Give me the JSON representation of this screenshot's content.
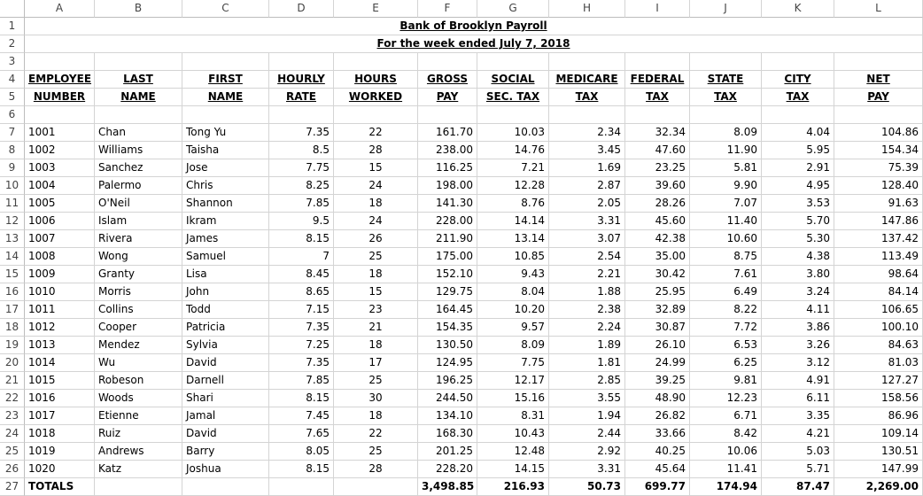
{
  "columns": [
    "A",
    "B",
    "C",
    "D",
    "E",
    "F",
    "G",
    "H",
    "I",
    "J",
    "K",
    "L"
  ],
  "title": "Bank of Brooklyn Payroll",
  "subtitle": "For the week  ended July  7, 2018",
  "headers_top": [
    "EMPLOYEE",
    "LAST",
    "FIRST",
    "HOURLY",
    "HOURS",
    "GROSS",
    "SOCIAL",
    "MEDICARE",
    "FEDERAL",
    "STATE",
    "CITY",
    "NET"
  ],
  "headers_bottom": [
    "NUMBER",
    "NAME",
    "NAME",
    "RATE",
    "WORKED",
    "PAY",
    "SEC. TAX",
    "TAX",
    "TAX",
    "TAX",
    "TAX",
    "PAY"
  ],
  "rows": [
    [
      "1001",
      "Chan",
      "Tong Yu",
      "7.35",
      "22",
      "161.70",
      "10.03",
      "2.34",
      "32.34",
      "8.09",
      "4.04",
      "104.86"
    ],
    [
      "1002",
      "Williams",
      "Taisha",
      "8.5",
      "28",
      "238.00",
      "14.76",
      "3.45",
      "47.60",
      "11.90",
      "5.95",
      "154.34"
    ],
    [
      "1003",
      "Sanchez",
      "Jose",
      "7.75",
      "15",
      "116.25",
      "7.21",
      "1.69",
      "23.25",
      "5.81",
      "2.91",
      "75.39"
    ],
    [
      "1004",
      "Palermo",
      "Chris",
      "8.25",
      "24",
      "198.00",
      "12.28",
      "2.87",
      "39.60",
      "9.90",
      "4.95",
      "128.40"
    ],
    [
      "1005",
      "O'Neil",
      "Shannon",
      "7.85",
      "18",
      "141.30",
      "8.76",
      "2.05",
      "28.26",
      "7.07",
      "3.53",
      "91.63"
    ],
    [
      "1006",
      "Islam",
      "Ikram",
      "9.5",
      "24",
      "228.00",
      "14.14",
      "3.31",
      "45.60",
      "11.40",
      "5.70",
      "147.86"
    ],
    [
      "1007",
      "Rivera",
      "James",
      "8.15",
      "26",
      "211.90",
      "13.14",
      "3.07",
      "42.38",
      "10.60",
      "5.30",
      "137.42"
    ],
    [
      "1008",
      "Wong",
      "Samuel",
      "7",
      "25",
      "175.00",
      "10.85",
      "2.54",
      "35.00",
      "8.75",
      "4.38",
      "113.49"
    ],
    [
      "1009",
      "Granty",
      "Lisa",
      "8.45",
      "18",
      "152.10",
      "9.43",
      "2.21",
      "30.42",
      "7.61",
      "3.80",
      "98.64"
    ],
    [
      "1010",
      "Morris",
      "John",
      "8.65",
      "15",
      "129.75",
      "8.04",
      "1.88",
      "25.95",
      "6.49",
      "3.24",
      "84.14"
    ],
    [
      "1011",
      "Collins",
      "Todd",
      "7.15",
      "23",
      "164.45",
      "10.20",
      "2.38",
      "32.89",
      "8.22",
      "4.11",
      "106.65"
    ],
    [
      "1012",
      "Cooper",
      "Patricia",
      "7.35",
      "21",
      "154.35",
      "9.57",
      "2.24",
      "30.87",
      "7.72",
      "3.86",
      "100.10"
    ],
    [
      "1013",
      "Mendez",
      "Sylvia",
      "7.25",
      "18",
      "130.50",
      "8.09",
      "1.89",
      "26.10",
      "6.53",
      "3.26",
      "84.63"
    ],
    [
      "1014",
      "Wu",
      "David",
      "7.35",
      "17",
      "124.95",
      "7.75",
      "1.81",
      "24.99",
      "6.25",
      "3.12",
      "81.03"
    ],
    [
      "1015",
      "Robeson",
      "Darnell",
      "7.85",
      "25",
      "196.25",
      "12.17",
      "2.85",
      "39.25",
      "9.81",
      "4.91",
      "127.27"
    ],
    [
      "1016",
      "Woods",
      "Shari",
      "8.15",
      "30",
      "244.50",
      "15.16",
      "3.55",
      "48.90",
      "12.23",
      "6.11",
      "158.56"
    ],
    [
      "1017",
      "Etienne",
      "Jamal",
      "7.45",
      "18",
      "134.10",
      "8.31",
      "1.94",
      "26.82",
      "6.71",
      "3.35",
      "86.96"
    ],
    [
      "1018",
      "Ruiz",
      "David",
      "7.65",
      "22",
      "168.30",
      "10.43",
      "2.44",
      "33.66",
      "8.42",
      "4.21",
      "109.14"
    ],
    [
      "1019",
      "Andrews",
      "Barry",
      "8.05",
      "25",
      "201.25",
      "12.48",
      "2.92",
      "40.25",
      "10.06",
      "5.03",
      "130.51"
    ],
    [
      "1020",
      "Katz",
      "Joshua",
      "8.15",
      "28",
      "228.20",
      "14.15",
      "3.31",
      "45.64",
      "11.41",
      "5.71",
      "147.99"
    ]
  ],
  "totals": {
    "label": "TOTALS",
    "gross": "3,498.85",
    "social": "216.93",
    "medicare": "50.73",
    "federal": "699.77",
    "state": "174.94",
    "city": "87.47",
    "net": "2,269.00"
  }
}
